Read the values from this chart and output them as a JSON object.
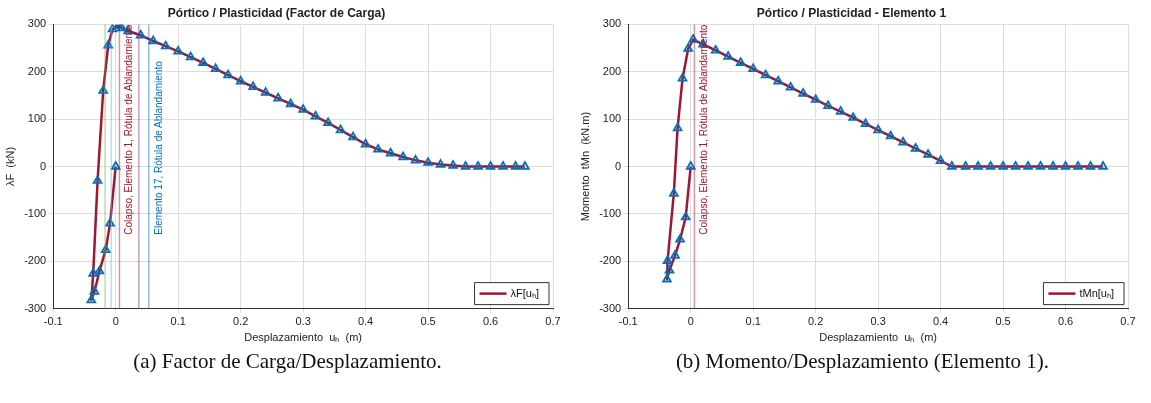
{
  "chart_data": [
    {
      "type": "line",
      "title": "Pórtico / Plasticidad (Factor de Carga)",
      "xlabel": "Desplazamiento  uₕ  (m)",
      "ylabel": "λF  (kN)",
      "x": [
        0,
        -0.009,
        -0.016,
        -0.026,
        -0.034,
        -0.039,
        -0.036,
        -0.029,
        -0.02,
        -0.012,
        -0.005,
        0.004,
        0.01,
        0.02,
        0.04,
        0.06,
        0.08,
        0.1,
        0.12,
        0.14,
        0.16,
        0.18,
        0.2,
        0.22,
        0.24,
        0.26,
        0.28,
        0.3,
        0.32,
        0.34,
        0.36,
        0.38,
        0.4,
        0.42,
        0.44,
        0.46,
        0.48,
        0.5,
        0.52,
        0.54,
        0.56,
        0.58,
        0.6,
        0.62,
        0.64,
        0.655
      ],
      "series": [
        {
          "name": "λF[uₕ]",
          "color": "#a2142f",
          "values": [
            0,
            -120,
            -176,
            -221,
            -264,
            -282,
            -226,
            -30,
            160,
            256,
            290,
            297,
            292,
            286,
            277,
            265,
            254,
            243,
            231,
            219,
            206,
            193,
            180,
            168,
            156,
            144,
            132,
            120,
            106,
            92,
            77,
            62,
            47,
            36,
            28,
            20,
            13,
            8,
            4,
            2,
            0,
            0,
            0,
            0,
            0,
            0
          ]
        }
      ],
      "xlim": [
        -0.1,
        0.7
      ],
      "xticks": [
        -0.1,
        0,
        0.1,
        0.2,
        0.3,
        0.4,
        0.5,
        0.6,
        0.7
      ],
      "ylim": [
        -300,
        300
      ],
      "yticks": [
        -300,
        -200,
        -100,
        0,
        100,
        200,
        300
      ],
      "ref_lines": [
        {
          "axis": "x",
          "value": -0.017,
          "label": null,
          "color": "#77ac30"
        },
        {
          "axis": "x",
          "value": -0.007,
          "label": null,
          "color": "#4dbeee"
        },
        {
          "axis": "x",
          "value": 0.006,
          "label": "Colapso, Elemento 1, Rótula de Ablandamiento",
          "color": "#a2142f"
        },
        {
          "axis": "x",
          "value": 0.037,
          "label": null,
          "color": "#7e2f8e"
        },
        {
          "axis": "x",
          "value": 0.053,
          "label": "Elemento 17, Rótula de Ablandamiento",
          "color": "#0072bd"
        }
      ],
      "annotations": [
        "(a) Factor de Carga/Desplazamiento."
      ],
      "grid": true,
      "legend": "bottom right",
      "marker": "triangle",
      "line_style": "solid"
    },
    {
      "type": "line",
      "title": "Pórtico / Plasticidad - Elemento 1",
      "xlabel": "Desplazamiento  uₕ  (m)",
      "ylabel": "Momento  tMn  (kN.m)",
      "x": [
        0,
        -0.008,
        -0.017,
        -0.025,
        -0.034,
        -0.038,
        -0.037,
        -0.027,
        -0.021,
        -0.013,
        -0.004,
        0.004,
        0.02,
        0.04,
        0.06,
        0.08,
        0.1,
        0.12,
        0.14,
        0.16,
        0.18,
        0.2,
        0.22,
        0.24,
        0.26,
        0.28,
        0.3,
        0.32,
        0.34,
        0.36,
        0.38,
        0.4,
        0.418,
        0.44,
        0.46,
        0.48,
        0.5,
        0.52,
        0.54,
        0.56,
        0.58,
        0.6,
        0.62,
        0.64,
        0.66
      ],
      "series": [
        {
          "name": "tMn[uₕ]",
          "color": "#a2142f",
          "values": [
            0,
            -107,
            -154,
            -188,
            -219,
            -238,
            -199,
            -57,
            81,
            186,
            249,
            268,
            258,
            245,
            232,
            219,
            206,
            193,
            180,
            167,
            154,
            141,
            128,
            116,
            103,
            90,
            77,
            64,
            51,
            38,
            25,
            12,
            0,
            0,
            0,
            0,
            0,
            0,
            0,
            0,
            0,
            0,
            0,
            0,
            0
          ]
        }
      ],
      "xlim": [
        -0.1,
        0.7
      ],
      "xticks": [
        -0.1,
        0,
        0.1,
        0.2,
        0.3,
        0.4,
        0.5,
        0.6,
        0.7
      ],
      "ylim": [
        -300,
        300
      ],
      "yticks": [
        -300,
        -200,
        -100,
        0,
        100,
        200,
        300
      ],
      "ref_lines": [
        {
          "axis": "x",
          "value": 0.006,
          "label": "Colapso, Elemento 1, Rótula de Ablandamiento",
          "color": "#a2142f"
        }
      ],
      "annotations": [
        "(b) Momento/Desplazamiento (Elemento 1)."
      ],
      "grid": true,
      "legend": "bottom right",
      "marker": "triangle",
      "line_style": "solid"
    }
  ]
}
